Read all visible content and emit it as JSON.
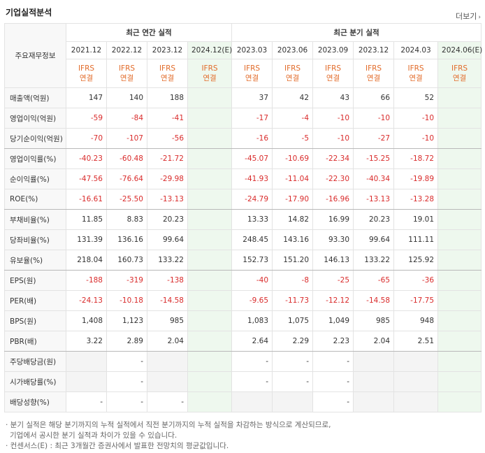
{
  "title": "기업실적분석",
  "more_label": "더보기",
  "corner_label": "주요재무정보",
  "groups": {
    "annual": "최근 연간 실적",
    "quarter": "최근 분기 실적"
  },
  "periods": [
    "2021.12",
    "2022.12",
    "2023.12",
    "2024.12(E)",
    "2023.03",
    "2023.06",
    "2023.09",
    "2023.12",
    "2024.03",
    "2024.06(E)"
  ],
  "basis_top": "IFRS",
  "basis_bottom": "연결",
  "rows": [
    {
      "label": "매출액(억원)",
      "values": [
        "147",
        "140",
        "188",
        "",
        "37",
        "42",
        "43",
        "66",
        "52",
        ""
      ]
    },
    {
      "label": "영업이익(억원)",
      "values": [
        "-59",
        "-84",
        "-41",
        "",
        "-17",
        "-4",
        "-10",
        "-10",
        "-10",
        ""
      ]
    },
    {
      "label": "당기순이익(억원)",
      "values": [
        "-70",
        "-107",
        "-56",
        "",
        "-16",
        "-5",
        "-10",
        "-27",
        "-10",
        ""
      ]
    },
    {
      "label": "영업이익률(%)",
      "values": [
        "-40.23",
        "-60.48",
        "-21.72",
        "",
        "-45.07",
        "-10.69",
        "-22.34",
        "-15.25",
        "-18.72",
        ""
      ]
    },
    {
      "label": "순이익률(%)",
      "values": [
        "-47.56",
        "-76.64",
        "-29.98",
        "",
        "-41.93",
        "-11.04",
        "-22.30",
        "-40.34",
        "-19.89",
        ""
      ]
    },
    {
      "label": "ROE(%)",
      "values": [
        "-16.61",
        "-25.50",
        "-13.13",
        "",
        "-24.79",
        "-17.90",
        "-16.96",
        "-13.13",
        "-13.28",
        ""
      ]
    },
    {
      "label": "부채비율(%)",
      "values": [
        "11.85",
        "8.83",
        "20.23",
        "",
        "13.33",
        "14.82",
        "16.99",
        "20.23",
        "19.01",
        ""
      ]
    },
    {
      "label": "당좌비율(%)",
      "values": [
        "131.39",
        "136.16",
        "99.64",
        "",
        "248.45",
        "143.16",
        "93.30",
        "99.64",
        "111.11",
        ""
      ]
    },
    {
      "label": "유보율(%)",
      "values": [
        "218.04",
        "160.73",
        "133.22",
        "",
        "152.73",
        "151.20",
        "146.13",
        "133.22",
        "125.92",
        ""
      ]
    },
    {
      "label": "EPS(원)",
      "values": [
        "-188",
        "-319",
        "-138",
        "",
        "-40",
        "-8",
        "-25",
        "-65",
        "-36",
        ""
      ]
    },
    {
      "label": "PER(배)",
      "values": [
        "-24.13",
        "-10.18",
        "-14.58",
        "",
        "-9.65",
        "-11.73",
        "-12.12",
        "-14.58",
        "-17.75",
        ""
      ]
    },
    {
      "label": "BPS(원)",
      "values": [
        "1,408",
        "1,123",
        "985",
        "",
        "1,083",
        "1,075",
        "1,049",
        "985",
        "948",
        ""
      ]
    },
    {
      "label": "PBR(배)",
      "values": [
        "3.22",
        "2.89",
        "2.04",
        "",
        "2.64",
        "2.29",
        "2.23",
        "2.04",
        "2.51",
        ""
      ]
    },
    {
      "label": "주당배당금(원)",
      "values": [
        "",
        "-",
        "",
        "",
        "-",
        "-",
        "-",
        "",
        "",
        ""
      ]
    },
    {
      "label": "시가배당률(%)",
      "values": [
        "",
        "-",
        "",
        "",
        "-",
        "-",
        "-",
        "",
        "",
        ""
      ]
    },
    {
      "label": "배당성향(%)",
      "values": [
        "-",
        "-",
        "-",
        "",
        "",
        "",
        "-",
        "",
        "",
        ""
      ]
    }
  ],
  "notes": [
    "· 분기 실적은 해당 분기까지의 누적 실적에서 직전 분기까지의 누적 실적을 차감하는 방식으로 계산되므로,",
    "기업에서 공시한 분기 실적과 차이가 있을 수 있습니다.",
    "· 컨센서스(E) : 최근 3개월간 증권사에서 발표한 전망치의 평균값입니다."
  ],
  "colors": {
    "negative": "#d92b2b",
    "ifrs": "#e26b2a",
    "estimate_bg": "#eef8ee"
  }
}
